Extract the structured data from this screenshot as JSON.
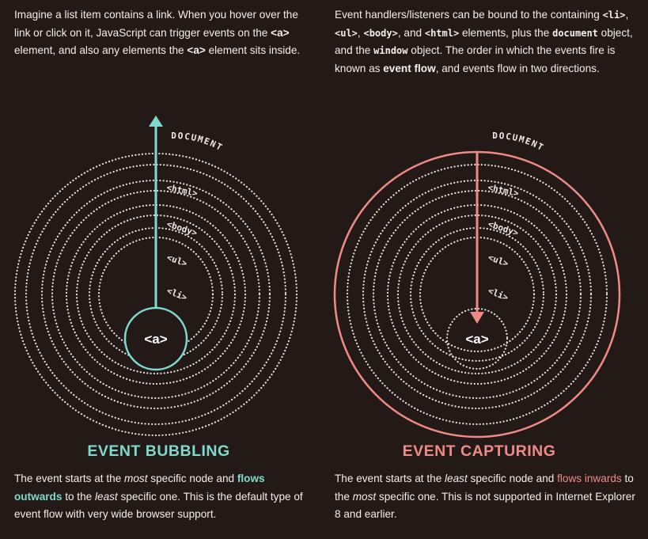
{
  "intro_left": {
    "p1": "Imagine a list item contains a link. When you hover over the link or click on it, JavaScript can trigger events on the ",
    "a_tag": "<a>",
    "p2": " element, and also any elements the ",
    "a_tag2": "<a>",
    "p3": " element sits inside."
  },
  "intro_right": {
    "p1": "Event handlers/listeners can be bound to the containing ",
    "li": "<li>",
    "c1": ", ",
    "ul": "<ul>",
    "c2": ", ",
    "body": "<body>",
    "c3": ", and ",
    "html": "<html>",
    "p2": " elements, plus the ",
    "document": "document",
    "p3": " object, and the ",
    "window": "window",
    "p4": " object. The order in which the events fire is known as ",
    "event_flow": "event flow",
    "p5": ", and events flow in two directions."
  },
  "diagram": {
    "labels": [
      "DOCUMENT",
      "<html>",
      "<body>",
      "<ul>",
      "<li>"
    ],
    "center_label": "<a>",
    "colors": {
      "bubbling": "#7fd9cc",
      "capturing": "#f08a86",
      "dots": "#e9e2da"
    }
  },
  "bubbling": {
    "heading": "EVENT BUBBLING",
    "d1": "The event starts at the ",
    "most": "most",
    "d2": " specific node and ",
    "flows": "flows outwards",
    "d3": " to the ",
    "least": "least",
    "d4": " specific one. This is the default type of event flow with very wide browser support."
  },
  "capturing": {
    "heading": "EVENT CAPTURING",
    "d1": "The event starts at the ",
    "least": "least",
    "d2": " specific node and ",
    "flows": "flows inwards",
    "d3": " to the ",
    "most": "most",
    "d4": " specific one. This is not supported in Internet Explorer 8 and earlier."
  }
}
